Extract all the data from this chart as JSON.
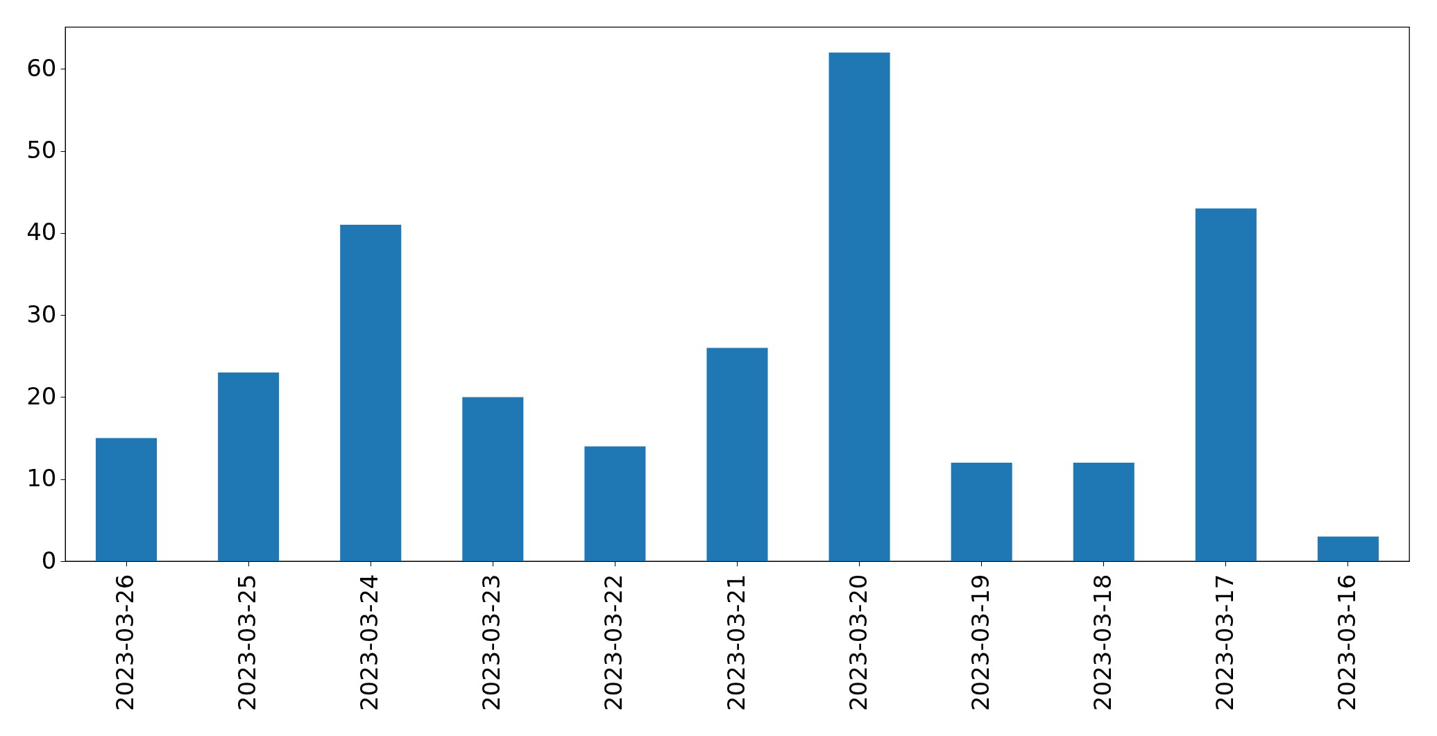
{
  "chart_data": {
    "type": "bar",
    "categories": [
      "2023-03-26",
      "2023-03-25",
      "2023-03-24",
      "2023-03-23",
      "2023-03-22",
      "2023-03-21",
      "2023-03-20",
      "2023-03-19",
      "2023-03-18",
      "2023-03-17",
      "2023-03-16"
    ],
    "values": [
      15,
      23,
      41,
      20,
      14,
      26,
      62,
      12,
      12,
      43,
      3
    ],
    "color": "#1f77b4",
    "ylim": [
      0,
      65.1
    ],
    "yticks": [
      0,
      10,
      20,
      30,
      40,
      50,
      60
    ]
  }
}
